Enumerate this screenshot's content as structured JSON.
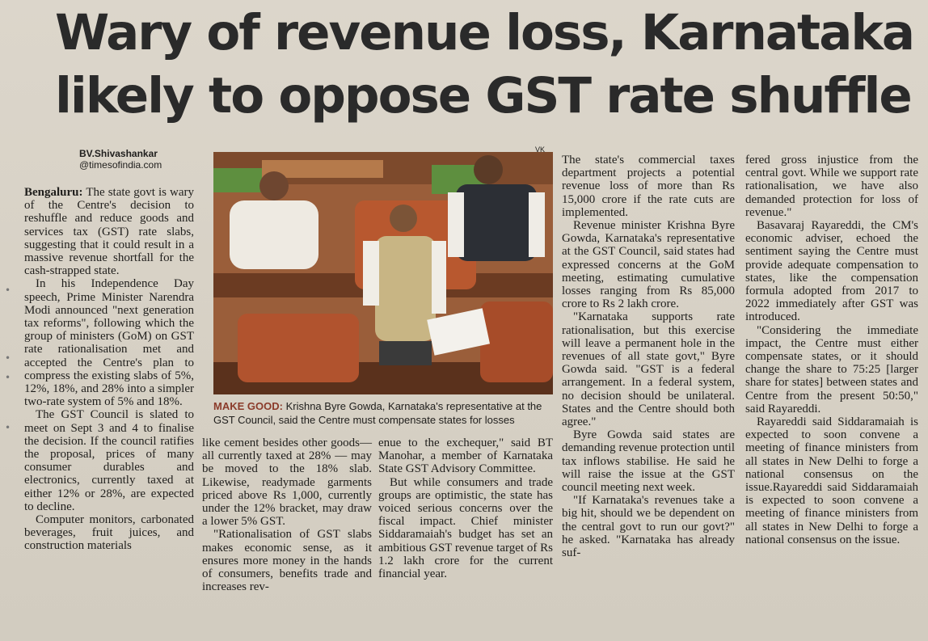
{
  "headline": {
    "line1": "Wary of revenue loss, Karnataka",
    "line2": "likely to oppose GST rate shuffle"
  },
  "byline": {
    "author": "BV.Shivashankar",
    "handle": "@timesofindia.com"
  },
  "photo": {
    "credit": "VK",
    "caption_lead": "MAKE GOOD:",
    "caption_text": "Krishna Byre Gowda, Karnataka's representative at the GST Council, said the Centre must compensate states for losses"
  },
  "article": {
    "dateline": "Bengaluru:",
    "col1": [
      "The state govt is wary of the Centre's decision to reshuffle and reduce goods and services tax (GST) rate slabs, suggesting that it could result in a massive revenue shortfall for the cash-strapped state.",
      "In his Independence Day speech, Prime Minister Narendra Modi announced \"next generation tax reforms\", following which the group of ministers (GoM) on GST rate rationalisation met and accepted the Centre's plan to compress the existing slabs of 5%, 12%, 18%, and 28% into a simpler two-rate system of 5% and 18%.",
      "The GST Council is slated to meet on Sept 3 and 4 to finalise the decision. If the council ratifies the proposal, prices of many consumer durables and electronics, currently taxed at either 12% or 28%, are expected to decline.",
      "Computer monitors, carbonated beverages, fruit juices, and construction materials"
    ],
    "col2": [
      "like cement besides other goods—all currently taxed at 28% — may be moved to the 18% slab. Likewise, readymade garments priced above Rs 1,000, currently under the 12% bracket, may draw a lower 5% GST.",
      "\"Rationalisation of GST slabs makes economic sense, as it ensures more money in the hands of consumers, benefits trade and increases rev-"
    ],
    "col3": [
      "enue to the exchequer,\" said BT Manohar, a member of Karnataka State GST Advisory Committee.",
      "But while consumers and trade groups are optimistic, the state has voiced serious concerns over the fiscal impact. Chief minister Siddaramaiah's budget has set an ambitious GST revenue target of Rs 1.2 lakh crore for the current financial year."
    ],
    "col4": [
      "The state's commercial taxes department projects a potential revenue loss of more than Rs 15,000 crore if the rate cuts are implemented.",
      "Revenue minister Krishna Byre Gowda, Karnataka's representative at the GST Council, said states had expressed concerns at the GoM meeting, estimating cumulative losses ranging from Rs 85,000 crore to Rs 2 lakh crore.",
      "\"Karnataka supports rate rationalisation, but this exercise will leave a permanent hole in the revenues of all state govt,\" Byre Gowda said. \"GST is a federal arrangement. In a federal system, no decision should be unilateral. States and the Centre should both agree.\"",
      "Byre Gowda said states are demanding revenue protection until tax inflows stabilise. He said he will raise the issue at the GST council meeting next week.",
      "\"If Karnataka's revenues take a big hit, should we be dependent on the central govt to run our govt?\" he asked. \"Karnataka has already suf-"
    ],
    "col5": [
      "fered gross injustice from the central govt. While we support rate rationalisation, we have also demanded protection for loss of revenue.\"",
      "Basavaraj Rayareddi, the CM's economic adviser, echoed the sentiment saying the Centre must provide adequate compensation to states, like the compensation formula adopted from 2017 to 2022 immediately after GST was introduced.",
      "\"Considering the immediate impact, the Centre must either compensate states, or it should change the share to 75:25 [larger share for states] between states and Centre from the present 50:50,\" said Rayareddi.",
      "Rayareddi said Siddaramaiah is expected to soon convene a meeting of finance ministers from all states in New Delhi to forge a national consensus on the issue.Rayareddi said Siddaramaiah is expected to soon convene a meeting of finance ministers from all states in New Delhi to forge a national consensus on the issue."
    ]
  },
  "colors": {
    "paper": "#d8d2c6",
    "ink": "#1f1e1c",
    "caption_lead": "#8b3b2a",
    "photo_seats": "#a5532f"
  }
}
